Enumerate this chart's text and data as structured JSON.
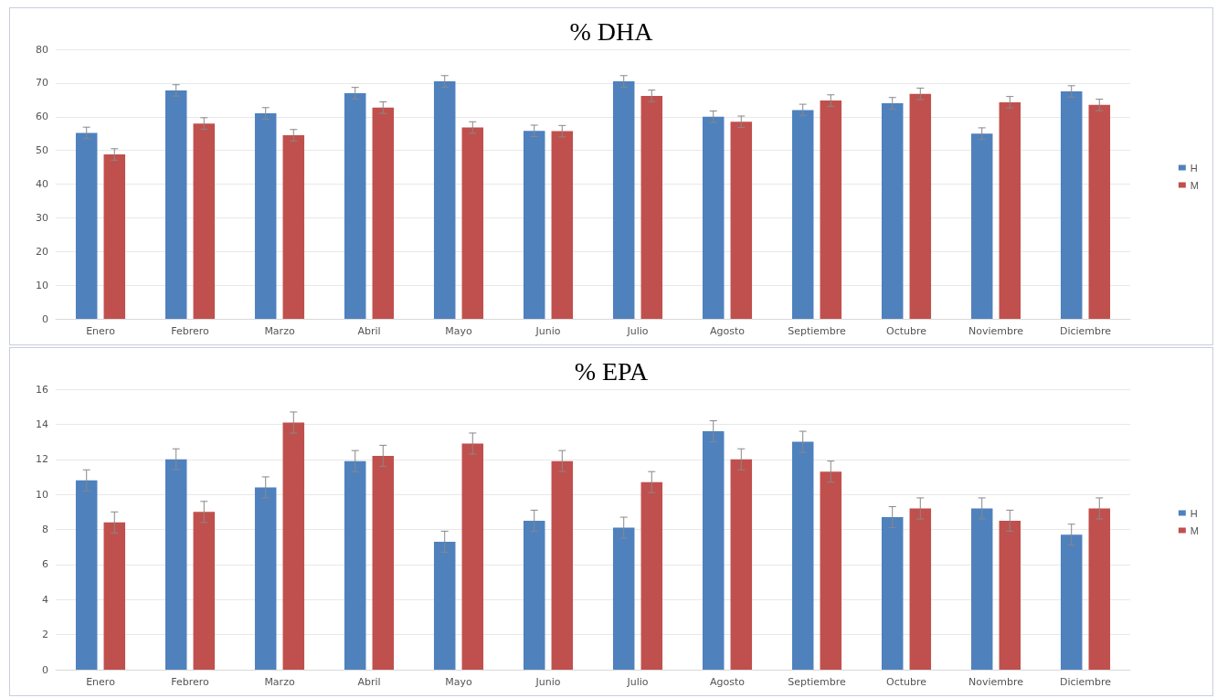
{
  "chart_data": [
    {
      "type": "bar",
      "title": "% DHA",
      "categories": [
        "Enero",
        "Febrero",
        "Marzo",
        "Abril",
        "Mayo",
        "Junio",
        "Julio",
        "Agosto",
        "Septiembre",
        "Octubre",
        "Noviembre",
        "Diciembre"
      ],
      "series": [
        {
          "name": "H",
          "color": "#4f81bd",
          "values": [
            55.2,
            67.8,
            61,
            67,
            70.5,
            55.8,
            70.5,
            60,
            62,
            64,
            55,
            67.5
          ],
          "errors": [
            1.7,
            1.7,
            1.7,
            1.7,
            1.7,
            1.7,
            1.7,
            1.7,
            1.7,
            1.7,
            1.7,
            1.7
          ]
        },
        {
          "name": "M",
          "color": "#c0504d",
          "values": [
            48.8,
            58,
            54.5,
            62.7,
            56.8,
            55.7,
            66.2,
            58.5,
            64.8,
            66.8,
            64.3,
            63.5
          ],
          "errors": [
            1.7,
            1.7,
            1.7,
            1.7,
            1.7,
            1.7,
            1.7,
            1.7,
            1.7,
            1.7,
            1.7,
            1.7
          ]
        }
      ],
      "ylim": [
        0,
        80
      ],
      "yticks": [
        0,
        10,
        20,
        30,
        40,
        50,
        60,
        70,
        80
      ],
      "grid": "y",
      "legend": "right"
    },
    {
      "type": "bar",
      "title": "% EPA",
      "categories": [
        "Enero",
        "Febrero",
        "Marzo",
        "Abril",
        "Mayo",
        "Junio",
        "Julio",
        "Agosto",
        "Septiembre",
        "Octubre",
        "Noviembre",
        "Diciembre"
      ],
      "series": [
        {
          "name": "H",
          "color": "#4f81bd",
          "values": [
            10.8,
            12,
            10.4,
            11.9,
            7.3,
            8.5,
            8.1,
            13.6,
            13.0,
            8.7,
            9.2,
            7.7
          ],
          "errors": [
            0.6,
            0.6,
            0.6,
            0.6,
            0.6,
            0.6,
            0.6,
            0.6,
            0.6,
            0.6,
            0.6,
            0.6
          ]
        },
        {
          "name": "M",
          "color": "#c0504d",
          "values": [
            8.4,
            9.0,
            14.1,
            12.2,
            12.9,
            11.9,
            10.7,
            12.0,
            11.3,
            9.2,
            8.5,
            9.2
          ],
          "errors": [
            0.6,
            0.6,
            0.6,
            0.6,
            0.6,
            0.6,
            0.6,
            0.6,
            0.6,
            0.6,
            0.6,
            0.6
          ]
        }
      ],
      "ylim": [
        0,
        16
      ],
      "yticks": [
        0,
        2,
        4,
        6,
        8,
        10,
        12,
        14,
        16
      ],
      "grid": "y",
      "legend": "right"
    }
  ]
}
